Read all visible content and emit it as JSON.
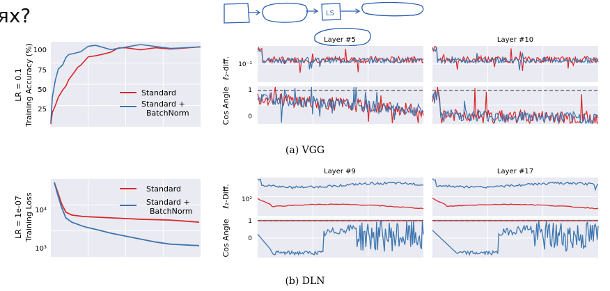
{
  "page": {
    "top_text": "ях?",
    "sketch_box_label": "LS",
    "handwritten_circle_on": "Layer #5",
    "caption_a": "(a) VGG",
    "caption_b": "(b) DLN"
  },
  "colors": {
    "standard": "#d62728",
    "batchnorm": "#3b75af",
    "panel_bg": "#eaeaf2",
    "grid": "#ffffff",
    "ink": "#2a5db0"
  },
  "chart_data": [
    {
      "id": "vgg-acc",
      "type": "line",
      "ylabel": "LR = 0.1",
      "ylabel2": "Training Accuracy (%)",
      "yticks": [
        "25",
        "50",
        "75",
        "100"
      ],
      "ylim": [
        5,
        105
      ],
      "legend": [
        "Standard",
        "Standard +",
        "BatchNorm"
      ],
      "series": [
        {
          "name": "Standard",
          "color": "standard",
          "points": [
            [
              0,
              8
            ],
            [
              0.01,
              22
            ],
            [
              0.03,
              30
            ],
            [
              0.05,
              40
            ],
            [
              0.08,
              48
            ],
            [
              0.1,
              55
            ],
            [
              0.12,
              62
            ],
            [
              0.15,
              68
            ],
            [
              0.18,
              75
            ],
            [
              0.2,
              80
            ],
            [
              0.25,
              85
            ],
            [
              0.3,
              88
            ],
            [
              0.35,
              91
            ],
            [
              0.4,
              94
            ],
            [
              0.45,
              96
            ],
            [
              0.5,
              97
            ],
            [
              0.6,
              98
            ],
            [
              0.7,
              98
            ],
            [
              0.8,
              98
            ],
            [
              1,
              99
            ]
          ]
        },
        {
          "name": "Standard + BatchNorm",
          "color": "batchnorm",
          "points": [
            [
              0,
              10
            ],
            [
              0.01,
              40
            ],
            [
              0.03,
              60
            ],
            [
              0.05,
              72
            ],
            [
              0.08,
              80
            ],
            [
              0.1,
              86
            ],
            [
              0.12,
              90
            ],
            [
              0.15,
              93
            ],
            [
              0.2,
              96
            ],
            [
              0.25,
              97
            ],
            [
              0.3,
              98
            ],
            [
              0.4,
              98
            ],
            [
              0.5,
              99
            ],
            [
              0.6,
              99
            ],
            [
              0.8,
              99
            ],
            [
              1,
              99
            ]
          ]
        }
      ]
    },
    {
      "id": "vgg-l2-layer5",
      "type": "line",
      "title": "Layer #5",
      "ylabel": "ℓ₂-diff.",
      "ytick": "10⁻¹",
      "note": "noisy ℓ₂-diff. traces hovering near 10⁻¹ for both series"
    },
    {
      "id": "vgg-l2-layer10",
      "type": "line",
      "title": "Layer #10"
    },
    {
      "id": "vgg-cos-layer5",
      "type": "line",
      "ylabel": "Cos Angle",
      "yticks": [
        "0",
        "1"
      ]
    },
    {
      "id": "vgg-cos-layer10",
      "type": "line"
    },
    {
      "id": "dln-loss",
      "type": "line",
      "ylabel": "LR = 1e-07",
      "ylabel2": "Training Loss",
      "yticks": [
        "10³",
        "10⁴"
      ],
      "legend": [
        "Standard",
        "Standard +",
        "BatchNorm"
      ],
      "series": [
        {
          "name": "Standard",
          "color": "standard",
          "points": [
            [
              0,
              0.0
            ],
            [
              0.02,
              0.12
            ],
            [
              0.05,
              0.3
            ],
            [
              0.08,
              0.42
            ],
            [
              0.12,
              0.46
            ],
            [
              0.2,
              0.48
            ],
            [
              0.4,
              0.5
            ],
            [
              0.6,
              0.52
            ],
            [
              0.8,
              0.53
            ],
            [
              1,
              0.56
            ]
          ]
        },
        {
          "name": "Standard + BatchNorm",
          "color": "batchnorm",
          "points": [
            [
              0,
              0.0
            ],
            [
              0.02,
              0.15
            ],
            [
              0.05,
              0.35
            ],
            [
              0.08,
              0.5
            ],
            [
              0.12,
              0.56
            ],
            [
              0.2,
              0.62
            ],
            [
              0.3,
              0.67
            ],
            [
              0.4,
              0.72
            ],
            [
              0.5,
              0.76
            ],
            [
              0.6,
              0.8
            ],
            [
              0.7,
              0.84
            ],
            [
              0.8,
              0.87
            ],
            [
              0.9,
              0.88
            ],
            [
              1,
              0.89
            ]
          ]
        }
      ]
    },
    {
      "id": "dln-l2-layer9",
      "type": "line",
      "title": "Layer #9",
      "ylabel": "ℓ₂-Diff.",
      "ytick": "10²"
    },
    {
      "id": "dln-l2-layer17",
      "type": "line",
      "title": "Layer #17"
    },
    {
      "id": "dln-cos-layer9",
      "type": "line",
      "ylabel": "Cos Angle",
      "yticks": [
        "0",
        "1"
      ]
    },
    {
      "id": "dln-cos-layer17",
      "type": "line"
    }
  ]
}
